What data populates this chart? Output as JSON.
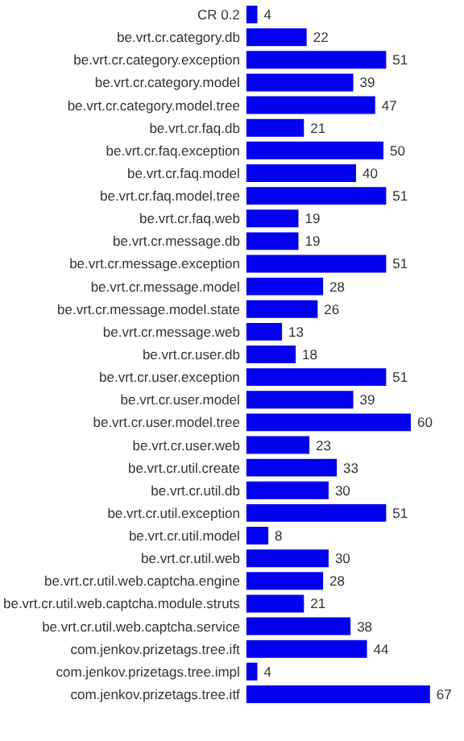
{
  "chart_data": {
    "type": "bar",
    "orientation": "horizontal",
    "data_labels": true,
    "color": "#0000ee",
    "categories": [
      "CR 0.2",
      "be.vrt.cr.category.db",
      "be.vrt.cr.category.exception",
      "be.vrt.cr.category.model",
      "be.vrt.cr.category.model.tree",
      "be.vrt.cr.faq.db",
      "be.vrt.cr.faq.exception",
      "be.vrt.cr.faq.model",
      "be.vrt.cr.faq.model.tree",
      "be.vrt.cr.faq.web",
      "be.vrt.cr.message.db",
      "be.vrt.cr.message.exception",
      "be.vrt.cr.message.model",
      "be.vrt.cr.message.model.state",
      "be.vrt.cr.message.web",
      "be.vrt.cr.user.db",
      "be.vrt.cr.user.exception",
      "be.vrt.cr.user.model",
      "be.vrt.cr.user.model.tree",
      "be.vrt.cr.user.web",
      "be.vrt.cr.util.create",
      "be.vrt.cr.util.db",
      "be.vrt.cr.util.exception",
      "be.vrt.cr.util.model",
      "be.vrt.cr.util.web",
      "be.vrt.cr.util.web.captcha.engine",
      "be.vrt.cr.util.web.captcha.module.struts",
      "be.vrt.cr.util.web.captcha.service",
      "com.jenkov.prizetags.tree.ift",
      "com.jenkov.prizetags.tree.impl",
      "com.jenkov.prizetags.tree.itf"
    ],
    "values": [
      4,
      22,
      51,
      39,
      47,
      21,
      50,
      40,
      51,
      19,
      19,
      51,
      28,
      26,
      13,
      18,
      51,
      39,
      60,
      23,
      33,
      30,
      51,
      8,
      30,
      28,
      21,
      38,
      44,
      4,
      67
    ]
  }
}
